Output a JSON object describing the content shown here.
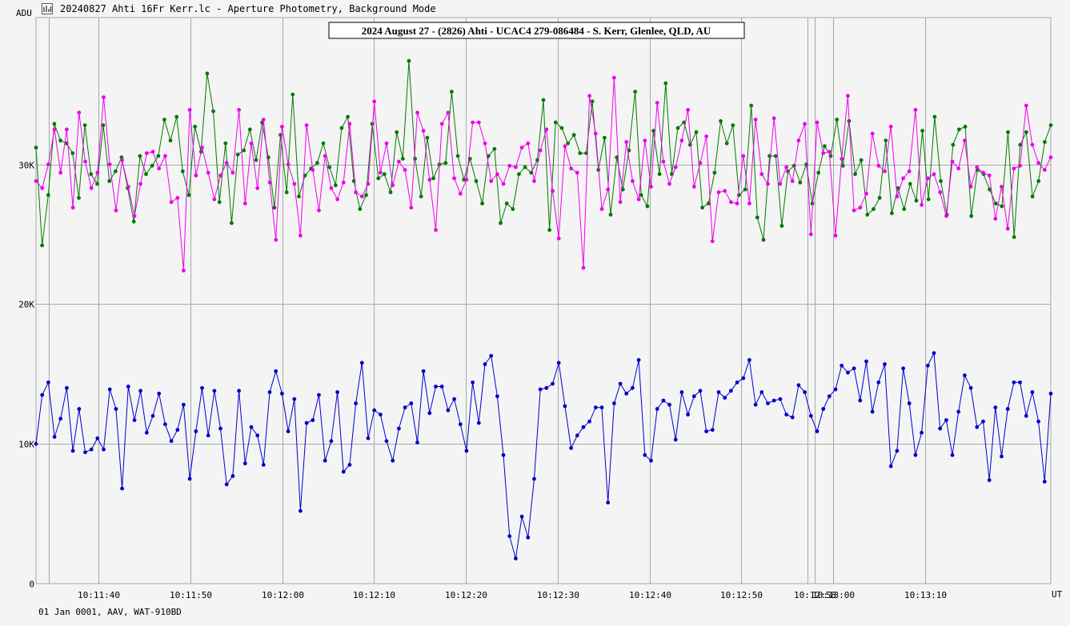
{
  "window": {
    "title": "20240827 Ahti 16Fr Kerr.lc - Aperture Photometry, Background Mode",
    "app_icon": "chart-icon"
  },
  "footer": {
    "text": "01 Jan 0001, AAV, WAT-910BD"
  },
  "colors": {
    "background": "#f4f4f4",
    "grid": "#a8a8a8",
    "series_blue": "#0000cc",
    "series_green": "#007a00",
    "series_magenta": "#ee00ee"
  },
  "chart_data": {
    "type": "line",
    "title": "2024 August 27 - (2826) Ahti - UCAC4 279-086484 - S. Kerr, Glenlee, QLD, AU",
    "xlabel": "UT",
    "ylabel": "ADU",
    "ylim": [
      0,
      40500
    ],
    "yticks": [
      {
        "value": 0,
        "label": "0"
      },
      {
        "value": 10000,
        "label": "10K"
      },
      {
        "value": 20000,
        "label": "20K"
      },
      {
        "value": 30000,
        "label": "30K"
      }
    ],
    "x_range_s": [
      0,
      110.5
    ],
    "xticks": [
      {
        "t": 6.8,
        "label": "10:11:40"
      },
      {
        "t": 16.8,
        "label": "10:11:50"
      },
      {
        "t": 26.8,
        "label": "10:12:00"
      },
      {
        "t": 36.8,
        "label": "10:12:10"
      },
      {
        "t": 46.8,
        "label": "10:12:20"
      },
      {
        "t": 56.8,
        "label": "10:12:30"
      },
      {
        "t": 66.8,
        "label": "10:12:40"
      },
      {
        "t": 76.8,
        "label": "10:12:50"
      },
      {
        "t": 84.8,
        "label": "10:12:58"
      },
      {
        "t": 86.8,
        "label": "10:13:00"
      },
      {
        "t": 96.8,
        "label": "10:13:10"
      }
    ],
    "extra_vlines_t": [
      1.4,
      84.0
    ],
    "grid": true,
    "legend": "none",
    "series": [
      {
        "color": "#0000cc",
        "values": [
          10000,
          13500,
          14400,
          10500,
          11800,
          14000,
          9500,
          12500,
          9400,
          9600,
          10400,
          9600,
          13900,
          12500,
          6800,
          14100,
          11700,
          13800,
          10800,
          12000,
          13600,
          11400,
          10200,
          11000,
          12800,
          7500,
          10900,
          14000,
          10600,
          13800,
          11100,
          7100,
          7700,
          13800,
          8600,
          11200,
          10600,
          8500,
          13700,
          15200,
          13600,
          10900,
          13200,
          5200,
          11500,
          11700,
          13500,
          8800,
          10200,
          13700,
          8000,
          8500,
          12900,
          15800,
          10400,
          12400,
          12100,
          10200,
          8800,
          11100,
          12600,
          12900,
          10100,
          15200,
          12200,
          14100,
          14100,
          12400,
          13200,
          11400,
          9500,
          14400,
          11500,
          15700,
          16300,
          13400,
          9200,
          3400,
          1800,
          4800,
          3300,
          7500,
          13900,
          14000,
          14300,
          15800,
          12700,
          9700,
          10600,
          11200,
          11600,
          12600,
          12600,
          5800,
          12900,
          14300,
          13600,
          14000,
          16000,
          9200,
          8800,
          12500,
          13100,
          12800,
          10300,
          13700,
          12100,
          13400,
          13800,
          10900,
          11000,
          13700,
          13300,
          13800,
          14400,
          14700,
          16000,
          12800,
          13700,
          12900,
          13100,
          13200,
          12100,
          11900,
          14200,
          13700,
          12000,
          10900,
          12500,
          13400,
          13900,
          15600,
          15100,
          15400,
          13100,
          15900,
          12300,
          14400,
          15700,
          8400,
          9500,
          15400,
          12900,
          9200,
          10800,
          15600,
          16500,
          11100,
          11700,
          9200,
          12300,
          14900,
          14000,
          11200,
          11600,
          7400,
          12600,
          9100,
          12500,
          14400,
          14400,
          12000,
          13700,
          11600,
          7300,
          13600
        ]
      },
      {
        "color": "#007a00",
        "values": [
          31200,
          24200,
          27800,
          32900,
          31700,
          31500,
          30800,
          27600,
          32800,
          29300,
          28600,
          32800,
          28800,
          29500,
          30500,
          28300,
          25900,
          30600,
          29300,
          29900,
          30600,
          33200,
          31700,
          33400,
          29500,
          27800,
          32700,
          30900,
          36500,
          33800,
          27300,
          31500,
          25800,
          30700,
          31000,
          32500,
          30300,
          33000,
          30500,
          26900,
          32100,
          28000,
          35000,
          27700,
          29200,
          29700,
          30100,
          31500,
          29800,
          28500,
          32600,
          33400,
          28800,
          26800,
          27800,
          32900,
          29000,
          29300,
          28000,
          32300,
          30400,
          37400,
          30400,
          27700,
          31900,
          29000,
          30000,
          30100,
          35200,
          30600,
          28900,
          30400,
          28800,
          27200,
          30600,
          31100,
          25800,
          27200,
          26800,
          29300,
          29800,
          29400,
          30300,
          34600,
          25300,
          33000,
          32600,
          31500,
          32100,
          30800,
          30800,
          34500,
          29600,
          31900,
          26400,
          30500,
          28200,
          31000,
          35200,
          27800,
          27000,
          32400,
          29300,
          35800,
          29300,
          32600,
          33000,
          31400,
          32300,
          26900,
          27200,
          29400,
          33100,
          31500,
          32800,
          27800,
          28200,
          34200,
          26200,
          24600,
          30600,
          30600,
          25600,
          29500,
          29900,
          28700,
          30000,
          27200,
          29400,
          31300,
          30600,
          33200,
          29900,
          33100,
          29300,
          30300,
          26400,
          26800,
          27600,
          31700,
          26500,
          28300,
          26800,
          28600,
          27400,
          32400,
          27500,
          33400,
          28800,
          26400,
          31400,
          32500,
          32700,
          26300,
          29600,
          29300,
          28200,
          27200,
          27000,
          32300,
          24800,
          31400,
          32300,
          27700,
          28800,
          31600,
          32800
        ]
      },
      {
        "color": "#ee00ee",
        "values": [
          28800,
          28300,
          30000,
          32500,
          29400,
          32500,
          26900,
          33700,
          30200,
          28300,
          29400,
          34800,
          30000,
          26700,
          30300,
          28400,
          26300,
          28600,
          30800,
          30900,
          29700,
          30600,
          27300,
          27600,
          22400,
          33900,
          29200,
          31200,
          29400,
          27500,
          29200,
          30100,
          29400,
          33900,
          27200,
          31500,
          28300,
          33200,
          28700,
          24600,
          32700,
          30000,
          28600,
          24900,
          32800,
          29600,
          26700,
          30600,
          28300,
          27500,
          28700,
          32900,
          28000,
          27700,
          28600,
          34500,
          29400,
          31500,
          28500,
          30200,
          29600,
          26900,
          33700,
          32400,
          28900,
          25300,
          32900,
          33700,
          29000,
          27900,
          28900,
          33000,
          33000,
          31500,
          28800,
          29300,
          28600,
          29900,
          29800,
          31200,
          31500,
          28800,
          31000,
          32500,
          28100,
          24700,
          31300,
          29700,
          29400,
          22600,
          34900,
          32200,
          26800,
          28200,
          36200,
          27300,
          31600,
          28800,
          27500,
          31700,
          28400,
          34400,
          30200,
          28600,
          29800,
          31700,
          33900,
          28400,
          30100,
          32000,
          24500,
          28000,
          28100,
          27300,
          27200,
          30600,
          27200,
          33200,
          29300,
          28600,
          33300,
          28600,
          29800,
          28800,
          31700,
          32900,
          25000,
          33000,
          30800,
          30900,
          24900,
          30400,
          34900,
          26700,
          26900,
          27900,
          32200,
          29900,
          29500,
          32700,
          27700,
          29000,
          29500,
          33900,
          27100,
          29000,
          29300,
          28000,
          26300,
          30200,
          29700,
          31700,
          28400,
          29800,
          29400,
          29200,
          26100,
          28400,
          25400,
          29700,
          29900,
          34200,
          31400,
          30100,
          29600,
          30500
        ]
      }
    ]
  }
}
